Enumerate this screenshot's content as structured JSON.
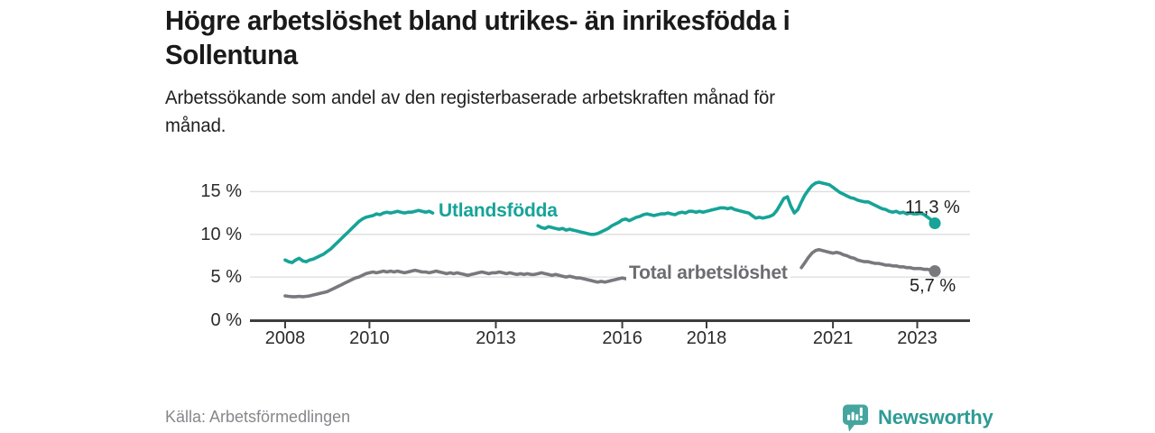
{
  "header": {
    "title_line1": "Högre arbetslöshet bland utrikes- än inrikesfödda i",
    "title_line2": "Sollentuna",
    "subtitle_line1": "Arbetssökande som andel av den registerbaserade arbetskraften månad för",
    "subtitle_line2": "månad."
  },
  "chart_data": {
    "type": "line",
    "title": "Högre arbetslöshet bland utrikes- än inrikesfödda i Sollentuna",
    "subtitle": "Arbetssökande som andel av den registerbaserade arbetskraften månad för månad.",
    "x_unit": "month",
    "x_start_month": "2008-01",
    "x_end_month": "2023-06",
    "points_per_year": 12,
    "ylim": [
      0,
      17
    ],
    "grid": "horizontal",
    "legend_position": "inline-on-line",
    "yticks": [
      {
        "value": 0,
        "label": "0 %"
      },
      {
        "value": 5,
        "label": "5 %"
      },
      {
        "value": 10,
        "label": "10 %"
      },
      {
        "value": 15,
        "label": "15 %"
      }
    ],
    "xticks": [
      {
        "year": 2008,
        "label": "2008"
      },
      {
        "year": 2010,
        "label": "2010"
      },
      {
        "year": 2013,
        "label": "2013"
      },
      {
        "year": 2016,
        "label": "2016"
      },
      {
        "year": 2018,
        "label": "2018"
      },
      {
        "year": 2021,
        "label": "2021"
      },
      {
        "year": 2023,
        "label": "2023"
      }
    ],
    "series": [
      {
        "name": "Utlandsfödda",
        "color": "#17a398",
        "end_label": "11,3 %",
        "last_value": 11.3,
        "gap_indices": [
          43,
          72
        ],
        "values": [
          7.0,
          6.8,
          6.7,
          7.0,
          7.2,
          6.9,
          6.8,
          7.0,
          7.1,
          7.3,
          7.5,
          7.7,
          8.0,
          8.3,
          8.7,
          9.1,
          9.5,
          9.9,
          10.3,
          10.7,
          11.1,
          11.5,
          11.8,
          12.0,
          12.1,
          12.2,
          12.4,
          12.3,
          12.5,
          12.6,
          12.5,
          12.6,
          12.7,
          12.6,
          12.5,
          12.6,
          12.6,
          12.7,
          12.8,
          12.7,
          12.6,
          12.7,
          12.5,
          12.4,
          12.5,
          12.4,
          12.3,
          12.4,
          12.4,
          12.3,
          12.2,
          12.3,
          12.2,
          12.1,
          12.0,
          12.1,
          12.0,
          11.9,
          11.8,
          11.7,
          11.6,
          11.5,
          11.4,
          11.3,
          11.2,
          11.2,
          11.1,
          11.1,
          11.0,
          11.0,
          10.9,
          10.9,
          11.0,
          10.8,
          10.7,
          10.9,
          10.8,
          10.7,
          10.6,
          10.7,
          10.5,
          10.6,
          10.5,
          10.4,
          10.3,
          10.2,
          10.1,
          10.0,
          10.0,
          10.1,
          10.3,
          10.5,
          10.7,
          11.0,
          11.2,
          11.4,
          11.7,
          11.8,
          11.6,
          11.8,
          12.0,
          12.1,
          12.3,
          12.4,
          12.3,
          12.2,
          12.3,
          12.4,
          12.4,
          12.5,
          12.4,
          12.3,
          12.5,
          12.6,
          12.5,
          12.7,
          12.7,
          12.6,
          12.7,
          12.6,
          12.7,
          12.8,
          12.9,
          13.0,
          13.1,
          13.1,
          13.0,
          13.1,
          12.9,
          12.8,
          12.7,
          12.6,
          12.5,
          12.2,
          11.9,
          12.0,
          11.9,
          12.0,
          12.1,
          12.3,
          12.8,
          13.5,
          14.2,
          14.4,
          13.3,
          12.5,
          12.9,
          13.8,
          14.6,
          15.2,
          15.7,
          16.0,
          16.1,
          16.0,
          15.9,
          15.8,
          15.5,
          15.2,
          14.9,
          14.7,
          14.5,
          14.3,
          14.2,
          14.0,
          13.9,
          13.8,
          13.8,
          13.6,
          13.4,
          13.2,
          13.0,
          12.9,
          12.7,
          12.6,
          12.7,
          12.5,
          12.6,
          12.4,
          12.5,
          12.4,
          12.4,
          12.5,
          12.3,
          12.0,
          11.7,
          11.3
        ]
      },
      {
        "name": "Total arbetslöshet",
        "color": "#78787d",
        "end_label": "5,7 %",
        "last_value": 5.7,
        "gap_indices": [
          98,
          147
        ],
        "values": [
          2.8,
          2.75,
          2.7,
          2.7,
          2.75,
          2.7,
          2.75,
          2.8,
          2.9,
          3.0,
          3.1,
          3.2,
          3.3,
          3.5,
          3.7,
          3.9,
          4.1,
          4.3,
          4.5,
          4.7,
          4.9,
          5.0,
          5.2,
          5.4,
          5.5,
          5.6,
          5.5,
          5.6,
          5.7,
          5.6,
          5.7,
          5.6,
          5.7,
          5.6,
          5.5,
          5.6,
          5.7,
          5.8,
          5.7,
          5.6,
          5.6,
          5.5,
          5.6,
          5.7,
          5.6,
          5.5,
          5.4,
          5.5,
          5.4,
          5.5,
          5.4,
          5.3,
          5.2,
          5.3,
          5.4,
          5.5,
          5.6,
          5.5,
          5.4,
          5.5,
          5.5,
          5.6,
          5.5,
          5.4,
          5.5,
          5.4,
          5.3,
          5.4,
          5.3,
          5.4,
          5.3,
          5.3,
          5.4,
          5.5,
          5.4,
          5.3,
          5.2,
          5.3,
          5.2,
          5.1,
          5.0,
          5.1,
          5.0,
          4.9,
          4.9,
          4.8,
          4.7,
          4.6,
          4.5,
          4.4,
          4.5,
          4.4,
          4.5,
          4.6,
          4.7,
          4.8,
          4.9,
          4.8,
          4.9,
          4.8,
          4.9,
          4.8,
          4.8,
          4.7,
          4.8,
          4.7,
          4.6,
          4.7,
          4.7,
          4.8,
          4.7,
          4.6,
          4.7,
          4.8,
          4.7,
          4.6,
          4.7,
          4.6,
          4.7,
          4.8,
          4.8,
          4.7,
          4.6,
          4.5,
          4.6,
          4.5,
          4.4,
          4.5,
          4.6,
          4.5,
          4.6,
          4.7,
          4.6,
          4.5,
          4.5,
          4.4,
          4.5,
          4.6,
          4.7,
          4.8,
          5.0,
          5.2,
          5.3,
          5.2,
          5.1,
          5.0,
          5.4,
          6.1,
          6.7,
          7.3,
          7.8,
          8.1,
          8.2,
          8.1,
          8.0,
          7.9,
          7.8,
          7.9,
          7.8,
          7.6,
          7.5,
          7.3,
          7.2,
          7.0,
          6.9,
          6.8,
          6.8,
          6.7,
          6.6,
          6.6,
          6.5,
          6.4,
          6.4,
          6.3,
          6.3,
          6.2,
          6.2,
          6.1,
          6.1,
          6.0,
          6.0,
          6.0,
          5.9,
          5.9,
          5.8,
          5.7
        ]
      }
    ]
  },
  "footer": {
    "source": "Källa: Arbetsförmedlingen",
    "brand": "Newsworthy"
  },
  "colors": {
    "accent": "#17a398",
    "gray_line": "#78787d",
    "grid": "#dedede",
    "axis": "#3d3d3d",
    "axis_text": "#2b2b2b",
    "title_text": "#1a1a1a",
    "muted_text": "#87878c",
    "logo_icon": "#45a59f",
    "logo_text": "#2e9b95"
  }
}
